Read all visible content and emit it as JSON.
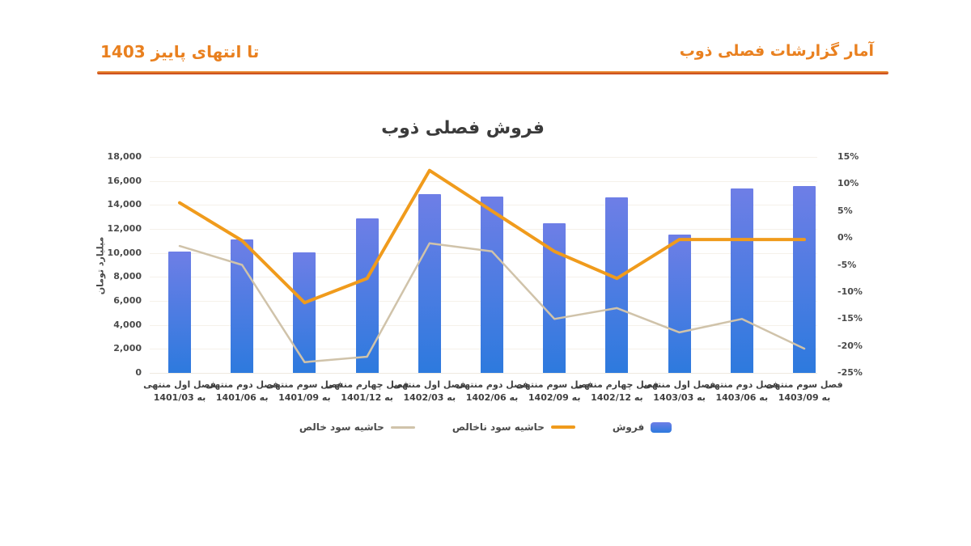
{
  "header": {
    "right_title": "آمار گزارشات فصلی ذوب",
    "left_title": "تا انتهای پاییز 1403"
  },
  "colors": {
    "header_orange": "#E9801F",
    "rule_gradient_top": "#F29A38",
    "rule_gradient_bottom": "#C13A15",
    "title_text": "#3B3B3B",
    "bar_top": "#6E7EE6",
    "bar_bottom": "#2D7ADE",
    "gross_margin_line": "#F09B1C",
    "net_margin_line": "#D0C3AA",
    "axis_text": "#4a4a4a",
    "gridline": "#f5f1ea",
    "baseline": "#efe9e0"
  },
  "chart_data": {
    "type": "bar",
    "combo": "bar+line",
    "title": "فروش فصلی ذوب",
    "ylabel_left": "میلیارد تومان",
    "categories": [
      {
        "l1": "فصل اول منتهی",
        "l2": "به 1401/03"
      },
      {
        "l1": "فصل دوم منتهی",
        "l2": "به 1401/06"
      },
      {
        "l1": "فصل سوم منتهی",
        "l2": "به 1401/09"
      },
      {
        "l1": "فصل چهارم منتهی",
        "l2": "به 1401/12"
      },
      {
        "l1": "فصل اول منتهی",
        "l2": "به 1402/03"
      },
      {
        "l1": "فصل دوم منتهی",
        "l2": "به 1402/06"
      },
      {
        "l1": "فصل سوم منتهی",
        "l2": "به 1402/09"
      },
      {
        "l1": "فصل چهارم منتهی",
        "l2": "به 1402/12"
      },
      {
        "l1": "فصل اول منتهی",
        "l2": "به 1403/03"
      },
      {
        "l1": "فصل دوم منتهی",
        "l2": "به 1403/06"
      },
      {
        "l1": "فصل سوم منتهی",
        "l2": "به 1403/09"
      }
    ],
    "series": [
      {
        "name": "فروش",
        "kind": "bar",
        "axis": "left",
        "values": [
          10100,
          11100,
          10050,
          12900,
          14900,
          14700,
          12450,
          14650,
          11500,
          15400,
          15600
        ]
      },
      {
        "name": "حاشیه سود ناخالص",
        "kind": "line",
        "axis": "right",
        "values": [
          6.5,
          -0.5,
          -12,
          -7.5,
          12.5,
          5,
          -2.5,
          -7.5,
          -0.3,
          -0.3,
          -0.3
        ]
      },
      {
        "name": "حاشیه سود خالص",
        "kind": "line",
        "axis": "right",
        "values": [
          -1.5,
          -5,
          -23,
          -22,
          -1,
          -2.5,
          -15,
          -13,
          -17.5,
          -15,
          -20.5
        ]
      }
    ],
    "left_axis": {
      "min": 0,
      "max": 18000,
      "step": 2000,
      "tick_labels": [
        "18,000",
        "16,000",
        "14,000",
        "12,000",
        "10,000",
        "8,000",
        "6,000",
        "4,000",
        "2,000",
        "0"
      ]
    },
    "right_axis": {
      "min": -25,
      "max": 15,
      "step": 5,
      "tick_labels": [
        "15%",
        "10%",
        "5%",
        "0%",
        "-5%",
        "-10%",
        "-15%",
        "-20%",
        "-25%"
      ]
    },
    "legend": [
      "فروش",
      "حاشیه سود ناخالص",
      "حاشیه سود خالص"
    ],
    "legend_position": "bottom",
    "grid": "horizontal-faint"
  }
}
